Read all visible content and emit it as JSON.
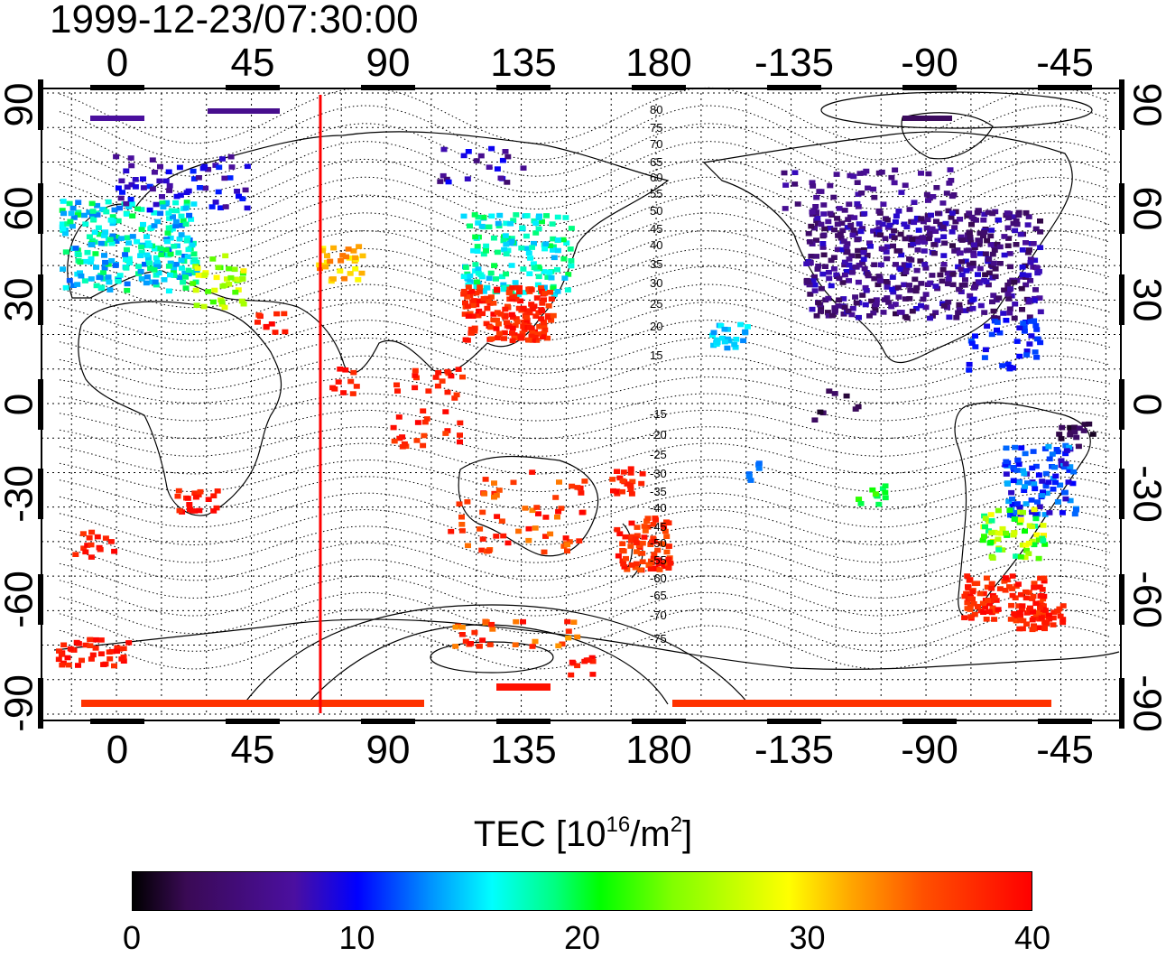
{
  "title": "1999-12-23/07:30:00",
  "map": {
    "x_tick_labels": [
      "0",
      "45",
      "90",
      "135",
      "180",
      "-135",
      "-90",
      "-45"
    ],
    "y_tick_labels": [
      "90",
      "60",
      "30",
      "0",
      "-30",
      "-60",
      "-90"
    ],
    "contour_labels": [
      "80",
      "75",
      "70",
      "65",
      "60",
      "55",
      "50",
      "45",
      "40",
      "35",
      "30",
      "25",
      "20",
      "15",
      "-15",
      "-20",
      "-25",
      "-30",
      "-35",
      "-40",
      "-45",
      "-50",
      "-55",
      "-60",
      "-65",
      "-70",
      "-75"
    ],
    "meridian_line_longitude": 68,
    "line_color": "#ff0000"
  },
  "colorbar": {
    "title_main": "TEC  [10",
    "title_exp1": "16",
    "title_mid": "/m",
    "title_exp2": "2",
    "title_end": "]",
    "tick_labels": [
      "0",
      "10",
      "20",
      "30",
      "40"
    ],
    "range": [
      0,
      40
    ]
  }
}
